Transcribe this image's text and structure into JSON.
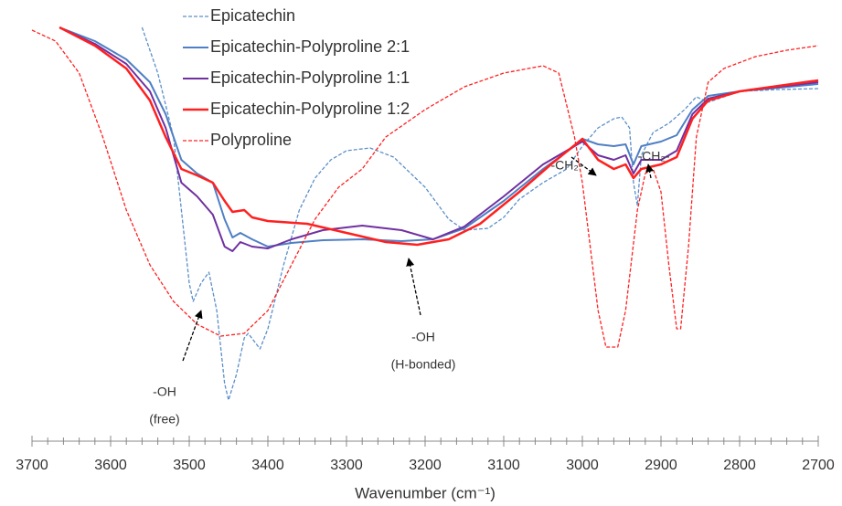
{
  "chart_data": {
    "type": "line",
    "xlabel": "Wavenumber (cm⁻¹)",
    "xlim": [
      3700,
      2700
    ],
    "xticks": [
      3700,
      3600,
      3500,
      3400,
      3300,
      3200,
      3100,
      3000,
      2900,
      2800,
      2700
    ],
    "minor_xticks": [
      3700,
      3680,
      3660,
      3640,
      3620,
      3600,
      3580,
      3560,
      3540,
      3520,
      3500,
      3480,
      3460,
      3440,
      3420,
      3400,
      3380,
      3360,
      3340,
      3320,
      3300,
      3280,
      3260,
      3240,
      3220,
      3200,
      3180,
      3160,
      3140,
      3120,
      3100,
      3080,
      3060,
      3040,
      3020,
      3000,
      2980,
      2960,
      2940,
      2920,
      2900,
      2880,
      2860,
      2840,
      2820,
      2800,
      2780,
      2760,
      2740,
      2720,
      2700
    ],
    "ylim": [
      0,
      450
    ],
    "series": [
      {
        "name": "Epicatechin",
        "color": "#5b8fc9",
        "dashed": true,
        "line_width": 1.3,
        "x": [
          3560,
          3540,
          3520,
          3510,
          3500,
          3495,
          3485,
          3475,
          3465,
          3455,
          3450,
          3440,
          3430,
          3425,
          3410,
          3400,
          3380,
          3360,
          3340,
          3320,
          3300,
          3270,
          3240,
          3200,
          3170,
          3150,
          3120,
          3100,
          3080,
          3050,
          3020,
          3000,
          2980,
          2960,
          2950,
          2940,
          2935,
          2930,
          2925,
          2910,
          2890,
          2870,
          2855,
          2840,
          2800,
          2750,
          2700
        ],
        "values": [
          440,
          390,
          320,
          240,
          160,
          140,
          160,
          172,
          130,
          50,
          32,
          60,
          100,
          105,
          88,
          110,
          180,
          240,
          275,
          295,
          305,
          308,
          298,
          265,
          230,
          218,
          220,
          232,
          252,
          270,
          285,
          310,
          330,
          340,
          342,
          330,
          270,
          245,
          300,
          325,
          335,
          350,
          364,
          358,
          370,
          372,
          373
        ]
      },
      {
        "name": "Epicatechin-Polyproline 2:1",
        "color": "#4f7fc4",
        "dashed": false,
        "line_width": 2,
        "x": [
          3665,
          3620,
          3580,
          3550,
          3530,
          3510,
          3490,
          3470,
          3455,
          3445,
          3435,
          3420,
          3400,
          3370,
          3330,
          3280,
          3230,
          3190,
          3150,
          3100,
          3050,
          3010,
          3000,
          2980,
          2960,
          2945,
          2935,
          2925,
          2900,
          2880,
          2860,
          2840,
          2800,
          2700
        ],
        "values": [
          440,
          425,
          405,
          380,
          345,
          295,
          280,
          270,
          230,
          210,
          215,
          208,
          200,
          204,
          207,
          208,
          206,
          208,
          220,
          250,
          285,
          310,
          318,
          312,
          310,
          312,
          290,
          310,
          315,
          322,
          350,
          365,
          370,
          378
        ]
      },
      {
        "name": "Epicatechin-Polyproline 1:1",
        "color": "#7030a0",
        "dashed": false,
        "line_width": 2,
        "x": [
          3665,
          3620,
          3580,
          3550,
          3530,
          3510,
          3490,
          3470,
          3455,
          3445,
          3435,
          3420,
          3400,
          3370,
          3330,
          3280,
          3230,
          3190,
          3150,
          3100,
          3050,
          3000,
          2980,
          2960,
          2945,
          2935,
          2925,
          2900,
          2880,
          2860,
          2840,
          2800,
          2700
        ],
        "values": [
          440,
          422,
          400,
          370,
          330,
          270,
          255,
          235,
          200,
          195,
          205,
          200,
          198,
          208,
          218,
          223,
          218,
          208,
          222,
          255,
          290,
          315,
          300,
          295,
          300,
          280,
          295,
          295,
          305,
          345,
          362,
          370,
          380
        ]
      },
      {
        "name": "Epicatechin-Polyproline 1:2",
        "color": "#ff2020",
        "dashed": false,
        "line_width": 2.5,
        "x": [
          3665,
          3620,
          3580,
          3550,
          3530,
          3510,
          3490,
          3470,
          3455,
          3445,
          3430,
          3420,
          3400,
          3350,
          3300,
          3250,
          3210,
          3170,
          3130,
          3080,
          3040,
          3000,
          2980,
          2960,
          2945,
          2935,
          2925,
          2900,
          2880,
          2860,
          2840,
          2800,
          2700
        ],
        "values": [
          440,
          420,
          395,
          360,
          320,
          285,
          278,
          270,
          250,
          238,
          240,
          232,
          228,
          225,
          215,
          205,
          202,
          208,
          225,
          260,
          290,
          318,
          295,
          285,
          290,
          275,
          285,
          290,
          298,
          340,
          360,
          370,
          382
        ]
      },
      {
        "name": "Polyproline",
        "color": "#ff2020",
        "dashed": true,
        "line_width": 1.3,
        "x": [
          3700,
          3670,
          3640,
          3610,
          3580,
          3550,
          3520,
          3490,
          3460,
          3430,
          3400,
          3370,
          3340,
          3310,
          3280,
          3250,
          3200,
          3150,
          3100,
          3050,
          3030,
          3010,
          3000,
          2990,
          2980,
          2970,
          2955,
          2945,
          2930,
          2920,
          2910,
          2900,
          2890,
          2880,
          2875,
          2865,
          2855,
          2840,
          2820,
          2780,
          2740,
          2700
        ],
        "values": [
          437,
          425,
          390,
          320,
          240,
          180,
          140,
          115,
          102,
          105,
          130,
          180,
          230,
          265,
          285,
          320,
          350,
          375,
          390,
          398,
          390,
          320,
          270,
          200,
          130,
          90,
          90,
          130,
          240,
          280,
          285,
          260,
          180,
          110,
          110,
          200,
          320,
          380,
          395,
          408,
          415,
          420
        ]
      }
    ],
    "annotations": [
      {
        "lines": [
          "-OH",
          "(free)"
        ]
      },
      {
        "lines": [
          "-OH",
          "(H-bonded)"
        ]
      },
      {
        "lines": [
          "-CH₂-"
        ]
      },
      {
        "lines": [
          "-CH₂-"
        ]
      }
    ]
  }
}
